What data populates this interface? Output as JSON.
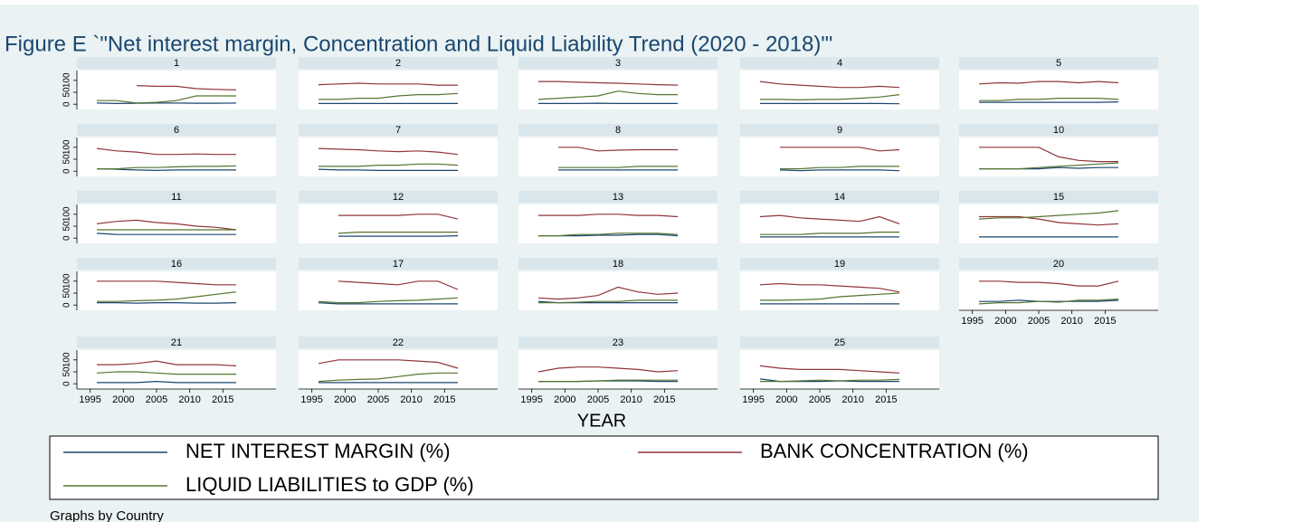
{
  "chart_data": {
    "type": "line",
    "title": "Figure E `\"Net interest margin, Concentration and Liquid Liability Trend (2020 - 2018)\"'",
    "x_label": "YEAR",
    "note": "Graphs by Country",
    "x": [
      1996,
      1999,
      2002,
      2005,
      2008,
      2011,
      2014,
      2017
    ],
    "xlim": [
      1993,
      2023
    ],
    "xticks": [
      1995,
      2000,
      2005,
      2010,
      2015
    ],
    "ylim": [
      -22,
      141
    ],
    "yticks": [
      0,
      50,
      100
    ],
    "legend": "bottom",
    "series": [
      {
        "name": "NET INTEREST MARGIN (%)",
        "color": "#1a476f"
      },
      {
        "name": "BANK CONCENTRATION (%)",
        "color": "#90353b"
      },
      {
        "name": "LIQUID LIABILITIES to GDP (%)",
        "color": "#55752f"
      }
    ],
    "panels": [
      {
        "title": "1",
        "values": [
          [
            5,
            3,
            4,
            5,
            5,
            4,
            4,
            5
          ],
          [
            null,
            null,
            78,
            75,
            75,
            65,
            62,
            60
          ],
          [
            15,
            15,
            5,
            8,
            15,
            35,
            35,
            35
          ]
        ]
      },
      {
        "title": "2",
        "values": [
          [
            3,
            3,
            3,
            3,
            3,
            3,
            3,
            3
          ],
          [
            82,
            85,
            88,
            85,
            85,
            85,
            80,
            80
          ],
          [
            20,
            20,
            25,
            25,
            35,
            40,
            40,
            45
          ]
        ]
      },
      {
        "title": "3",
        "values": [
          [
            3,
            3,
            3,
            4,
            3,
            3,
            3,
            3
          ],
          [
            95,
            95,
            92,
            90,
            88,
            85,
            82,
            80
          ],
          [
            20,
            25,
            30,
            35,
            55,
            45,
            40,
            40
          ]
        ]
      },
      {
        "title": "4",
        "values": [
          [
            3,
            3,
            3,
            3,
            3,
            3,
            3,
            2
          ],
          [
            95,
            85,
            80,
            75,
            70,
            70,
            75,
            70
          ],
          [
            20,
            20,
            18,
            20,
            20,
            25,
            30,
            40
          ]
        ]
      },
      {
        "title": "5",
        "values": [
          [
            8,
            8,
            8,
            8,
            8,
            8,
            8,
            10
          ],
          [
            85,
            90,
            88,
            95,
            95,
            90,
            95,
            90
          ],
          [
            15,
            15,
            20,
            20,
            25,
            25,
            25,
            20
          ]
        ]
      },
      {
        "title": "6",
        "values": [
          [
            10,
            8,
            5,
            3,
            5,
            5,
            5,
            5
          ],
          [
            95,
            85,
            80,
            70,
            70,
            72,
            70,
            70
          ],
          [
            10,
            10,
            15,
            15,
            18,
            20,
            20,
            22
          ]
        ]
      },
      {
        "title": "7",
        "values": [
          [
            8,
            5,
            5,
            3,
            3,
            3,
            3,
            3
          ],
          [
            95,
            92,
            90,
            85,
            82,
            85,
            80,
            70
          ],
          [
            20,
            20,
            20,
            25,
            25,
            30,
            30,
            25
          ]
        ]
      },
      {
        "title": "8",
        "values": [
          [
            null,
            5,
            5,
            5,
            5,
            5,
            5,
            5
          ],
          [
            null,
            100,
            100,
            85,
            88,
            90,
            90,
            90
          ],
          [
            null,
            15,
            15,
            15,
            15,
            20,
            20,
            20
          ]
        ]
      },
      {
        "title": "9",
        "values": [
          [
            null,
            5,
            2,
            5,
            5,
            5,
            5,
            2
          ],
          [
            null,
            100,
            100,
            100,
            100,
            100,
            85,
            90
          ],
          [
            null,
            10,
            10,
            15,
            15,
            20,
            20,
            20
          ]
        ]
      },
      {
        "title": "10",
        "values": [
          [
            10,
            10,
            10,
            10,
            15,
            12,
            15,
            15
          ],
          [
            100,
            100,
            100,
            100,
            60,
            45,
            40,
            40
          ],
          [
            10,
            10,
            10,
            15,
            20,
            25,
            30,
            35
          ]
        ]
      },
      {
        "title": "11",
        "values": [
          [
            20,
            15,
            15,
            15,
            15,
            15,
            15,
            15
          ],
          [
            60,
            70,
            75,
            65,
            60,
            50,
            45,
            35
          ],
          [
            35,
            35,
            35,
            35,
            35,
            35,
            35,
            35
          ]
        ]
      },
      {
        "title": "12",
        "values": [
          [
            null,
            8,
            8,
            8,
            8,
            8,
            8,
            10
          ],
          [
            null,
            95,
            95,
            95,
            95,
            100,
            100,
            80
          ],
          [
            null,
            20,
            25,
            25,
            25,
            25,
            25,
            25
          ]
        ]
      },
      {
        "title": "13",
        "values": [
          [
            10,
            10,
            10,
            12,
            12,
            15,
            15,
            10
          ],
          [
            95,
            95,
            95,
            100,
            100,
            95,
            95,
            90
          ],
          [
            10,
            10,
            15,
            15,
            20,
            20,
            20,
            15
          ]
        ]
      },
      {
        "title": "14",
        "values": [
          [
            5,
            5,
            5,
            5,
            5,
            5,
            5,
            5
          ],
          [
            90,
            95,
            85,
            80,
            75,
            70,
            90,
            60
          ],
          [
            15,
            15,
            15,
            20,
            20,
            20,
            25,
            25
          ]
        ]
      },
      {
        "title": "15",
        "values": [
          [
            5,
            5,
            5,
            5,
            5,
            5,
            5,
            5
          ],
          [
            90,
            90,
            90,
            80,
            65,
            60,
            55,
            60
          ],
          [
            80,
            85,
            85,
            90,
            95,
            100,
            105,
            115
          ]
        ]
      },
      {
        "title": "16",
        "values": [
          [
            10,
            10,
            8,
            10,
            10,
            8,
            8,
            10
          ],
          [
            100,
            100,
            100,
            100,
            95,
            90,
            85,
            85
          ],
          [
            15,
            15,
            18,
            20,
            25,
            35,
            45,
            55
          ]
        ]
      },
      {
        "title": "17",
        "values": [
          [
            10,
            5,
            5,
            5,
            5,
            5,
            5,
            5
          ],
          [
            null,
            100,
            95,
            90,
            85,
            100,
            100,
            65
          ],
          [
            15,
            10,
            10,
            15,
            18,
            20,
            25,
            30
          ]
        ]
      },
      {
        "title": "18",
        "values": [
          [
            15,
            10,
            10,
            10,
            10,
            10,
            10,
            10
          ],
          [
            30,
            25,
            30,
            40,
            75,
            55,
            45,
            50
          ],
          [
            10,
            10,
            12,
            15,
            15,
            20,
            20,
            20
          ]
        ]
      },
      {
        "title": "19",
        "values": [
          [
            5,
            5,
            5,
            5,
            5,
            5,
            5,
            5
          ],
          [
            85,
            90,
            85,
            85,
            80,
            75,
            70,
            55
          ],
          [
            20,
            20,
            22,
            25,
            35,
            40,
            45,
            50
          ]
        ]
      },
      {
        "title": "20",
        "values": [
          [
            15,
            15,
            20,
            15,
            15,
            15,
            15,
            20
          ],
          [
            100,
            100,
            95,
            95,
            90,
            80,
            80,
            100
          ],
          [
            5,
            10,
            10,
            15,
            12,
            20,
            20,
            25
          ]
        ]
      },
      {
        "title": "21",
        "values": [
          [
            5,
            5,
            5,
            10,
            5,
            5,
            5,
            5
          ],
          [
            80,
            80,
            85,
            95,
            80,
            80,
            80,
            75
          ],
          [
            45,
            50,
            50,
            45,
            40,
            40,
            40,
            40
          ]
        ]
      },
      {
        "title": "22",
        "values": [
          [
            5,
            5,
            5,
            5,
            5,
            5,
            5,
            5
          ],
          [
            85,
            100,
            100,
            100,
            100,
            95,
            90,
            65
          ],
          [
            10,
            15,
            18,
            20,
            30,
            40,
            45,
            45
          ]
        ]
      },
      {
        "title": "23",
        "values": [
          [
            10,
            10,
            10,
            12,
            12,
            12,
            10,
            10
          ],
          [
            50,
            65,
            70,
            70,
            65,
            60,
            50,
            55
          ],
          [
            10,
            10,
            10,
            12,
            15,
            15,
            15,
            15
          ]
        ]
      },
      {
        "title": "25",
        "values": [
          [
            20,
            10,
            10,
            10,
            12,
            10,
            10,
            10
          ],
          [
            75,
            65,
            60,
            60,
            60,
            55,
            50,
            45
          ],
          [
            10,
            10,
            12,
            15,
            12,
            15,
            15,
            18
          ]
        ]
      }
    ]
  }
}
